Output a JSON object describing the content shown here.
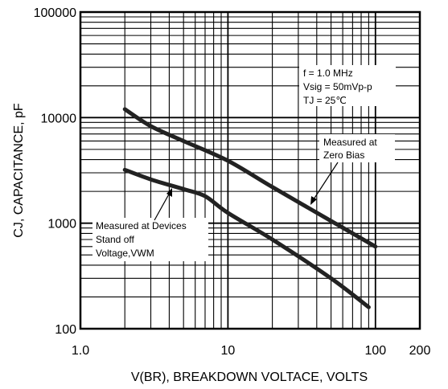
{
  "chart_data": {
    "type": "line",
    "title": "",
    "xlabel": "V(BR), BREAKDOWN VOLTACE, VOLTS",
    "ylabel": "CJ, CAPACITANCE, pF",
    "x_scale": "log",
    "y_scale": "log",
    "xlim": [
      1,
      200
    ],
    "ylim": [
      100,
      100000
    ],
    "grid": true,
    "x_ticks": [
      {
        "value": 1,
        "label": "1.0"
      },
      {
        "value": 10,
        "label": "10"
      },
      {
        "value": 100,
        "label": "100"
      },
      {
        "value": 200,
        "label": "200"
      }
    ],
    "y_ticks": [
      {
        "value": 100,
        "label": "100"
      },
      {
        "value": 1000,
        "label": "1000"
      },
      {
        "value": 10000,
        "label": "10000"
      },
      {
        "value": 100000,
        "label": "100000"
      }
    ],
    "series": [
      {
        "key": "zero-bias",
        "x": [
          2,
          3,
          5,
          10,
          20,
          50,
          100
        ],
        "y": [
          12000,
          8300,
          6000,
          3900,
          2200,
          1050,
          600
        ]
      },
      {
        "key": "standoff",
        "x": [
          2,
          3,
          5,
          7,
          10,
          20,
          50,
          90
        ],
        "y": [
          3200,
          2600,
          2100,
          1800,
          1250,
          700,
          300,
          160
        ]
      }
    ],
    "annotations": {
      "conditions": [
        "f = 1.0 MHz",
        "Vsig = 50mVp-p",
        "TJ = 25℃"
      ],
      "zero_bias": [
        "Measured at",
        "Zero Bias"
      ],
      "standoff": [
        "Measured at Devices",
        "Stand off",
        "Voltage,VWM"
      ]
    },
    "colors": {
      "line": "#222222",
      "grid": "#000000",
      "background": "#ffffff"
    }
  }
}
